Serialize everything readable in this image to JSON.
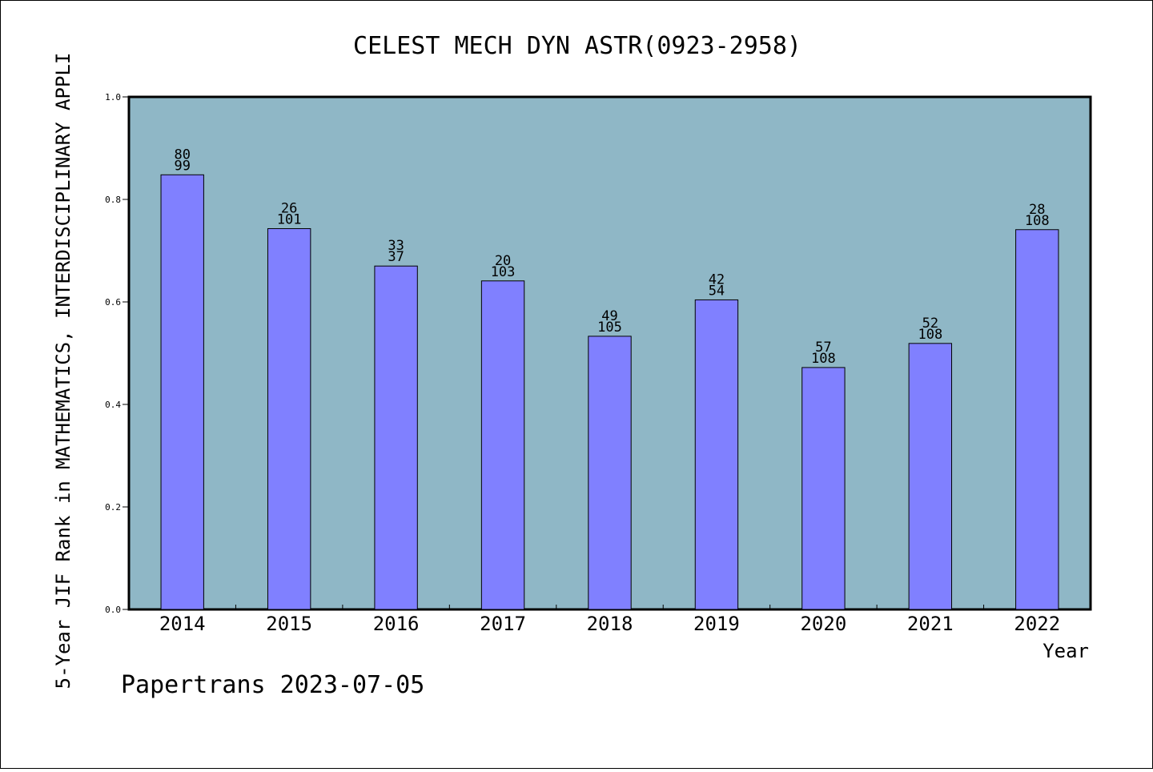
{
  "chart_data": {
    "type": "bar",
    "title": "CELEST MECH DYN ASTR(0923-2958)",
    "xlabel": "Year",
    "ylabel": "5-Year JIF Rank in MATHEMATICS,  INTERDISCIPLINARY APPLI",
    "categories": [
      "2014",
      "2015",
      "2016",
      "2017",
      "2018",
      "2019",
      "2020",
      "2021",
      "2022"
    ],
    "values": [
      0.848,
      0.743,
      0.67,
      0.641,
      0.533,
      0.604,
      0.472,
      0.519,
      0.741
    ],
    "rank_labels": [
      {
        "rank": "80",
        "total": "99"
      },
      {
        "rank": "26",
        "total": "101"
      },
      {
        "rank": "33",
        "total": "37"
      },
      {
        "rank": "20",
        "total": "103"
      },
      {
        "rank": "49",
        "total": "105"
      },
      {
        "rank": "42",
        "total": "54"
      },
      {
        "rank": "57",
        "total": "108"
      },
      {
        "rank": "52",
        "total": "108"
      },
      {
        "rank": "28",
        "total": "108"
      }
    ],
    "ylim": [
      0.0,
      1.0
    ],
    "yticks": [
      "0.0",
      "0.2",
      "0.4",
      "0.6",
      "0.8",
      "1.0"
    ],
    "grid": false,
    "colors": {
      "plot_background": "#8fb7c6",
      "bar": "#8080ff",
      "bar_edge": "#000000"
    }
  },
  "footer": "Papertrans 2023-07-05"
}
